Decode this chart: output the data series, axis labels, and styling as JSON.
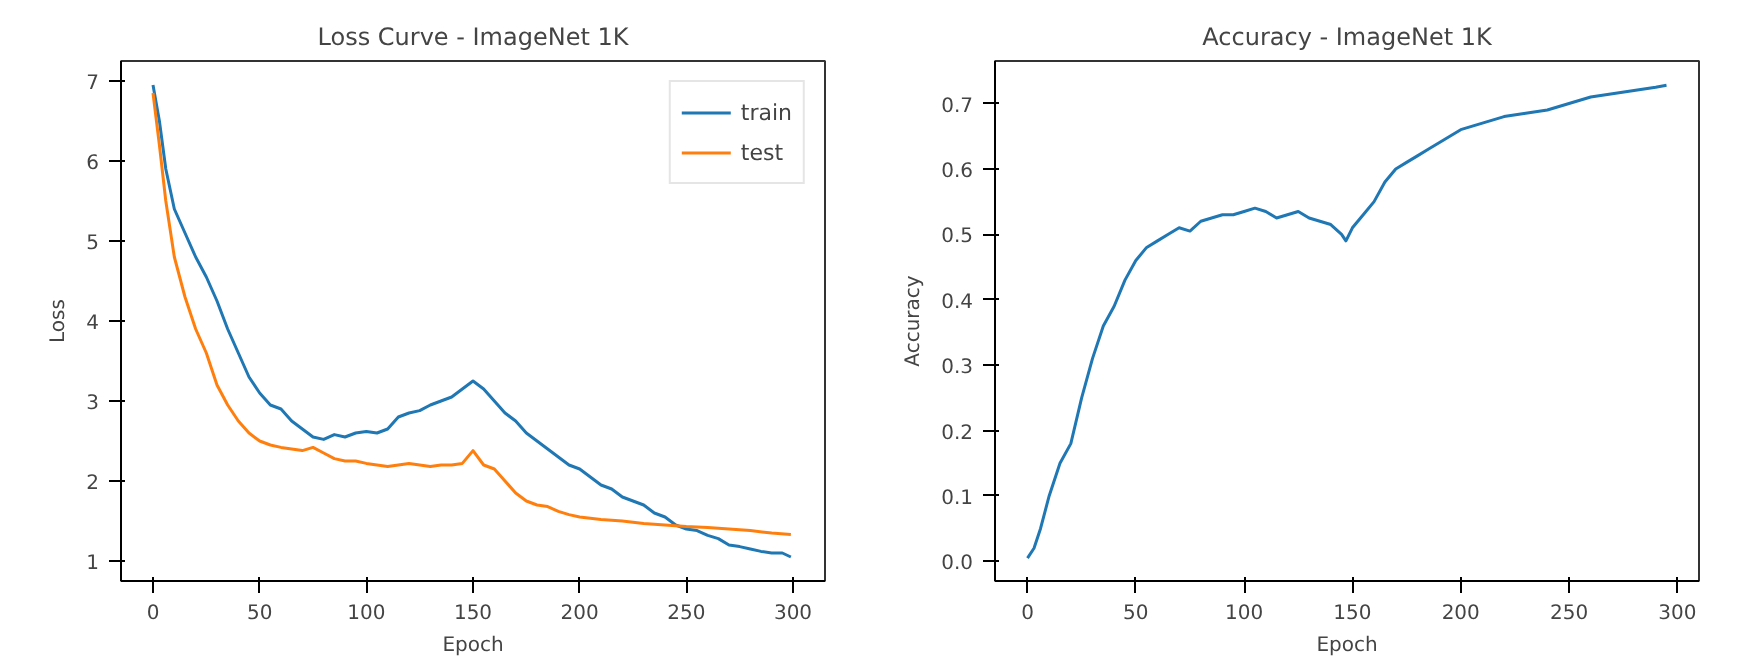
{
  "chart_data": [
    {
      "type": "line",
      "title": "Loss Curve - ImageNet 1K",
      "xlabel": "Epoch",
      "ylabel": "Loss",
      "xlim": [
        -15,
        315
      ],
      "ylim": [
        0.75,
        7.25
      ],
      "xticks": [
        0,
        50,
        100,
        150,
        200,
        250,
        300
      ],
      "yticks": [
        1,
        2,
        3,
        4,
        5,
        6,
        7
      ],
      "grid": false,
      "legend": "top right",
      "series": [
        {
          "name": "train",
          "color": "#1f77b4",
          "x": [
            0,
            3,
            6,
            10,
            15,
            20,
            25,
            30,
            35,
            40,
            45,
            50,
            55,
            60,
            65,
            70,
            75,
            80,
            85,
            90,
            95,
            100,
            105,
            110,
            115,
            120,
            125,
            130,
            135,
            140,
            145,
            150,
            155,
            160,
            165,
            170,
            175,
            180,
            185,
            190,
            195,
            200,
            205,
            210,
            215,
            220,
            225,
            230,
            235,
            240,
            245,
            250,
            255,
            260,
            265,
            270,
            275,
            280,
            285,
            290,
            295,
            299
          ],
          "values": [
            6.95,
            6.5,
            5.9,
            5.4,
            5.1,
            4.8,
            4.55,
            4.25,
            3.9,
            3.6,
            3.3,
            3.1,
            2.95,
            2.9,
            2.75,
            2.65,
            2.55,
            2.52,
            2.58,
            2.55,
            2.6,
            2.62,
            2.6,
            2.65,
            2.8,
            2.85,
            2.88,
            2.95,
            3.0,
            3.05,
            3.15,
            3.25,
            3.15,
            3.0,
            2.85,
            2.75,
            2.6,
            2.5,
            2.4,
            2.3,
            2.2,
            2.15,
            2.05,
            1.95,
            1.9,
            1.8,
            1.75,
            1.7,
            1.6,
            1.55,
            1.45,
            1.4,
            1.38,
            1.32,
            1.28,
            1.2,
            1.18,
            1.15,
            1.12,
            1.1,
            1.1,
            1.05
          ]
        },
        {
          "name": "test",
          "color": "#ff7f0e",
          "x": [
            0,
            3,
            6,
            10,
            15,
            20,
            25,
            30,
            35,
            40,
            45,
            50,
            55,
            60,
            65,
            70,
            75,
            80,
            85,
            90,
            95,
            100,
            105,
            110,
            115,
            120,
            125,
            130,
            135,
            140,
            145,
            150,
            155,
            160,
            165,
            170,
            175,
            180,
            185,
            190,
            195,
            200,
            210,
            220,
            230,
            240,
            250,
            260,
            270,
            280,
            290,
            299
          ],
          "values": [
            6.85,
            6.2,
            5.5,
            4.8,
            4.3,
            3.9,
            3.6,
            3.2,
            2.95,
            2.75,
            2.6,
            2.5,
            2.45,
            2.42,
            2.4,
            2.38,
            2.42,
            2.35,
            2.28,
            2.25,
            2.25,
            2.22,
            2.2,
            2.18,
            2.2,
            2.22,
            2.2,
            2.18,
            2.2,
            2.2,
            2.22,
            2.38,
            2.2,
            2.15,
            2.0,
            1.85,
            1.75,
            1.7,
            1.68,
            1.62,
            1.58,
            1.55,
            1.52,
            1.5,
            1.47,
            1.45,
            1.43,
            1.42,
            1.4,
            1.38,
            1.35,
            1.33
          ]
        }
      ]
    },
    {
      "type": "line",
      "title": "Accuracy - ImageNet 1K",
      "xlabel": "Epoch",
      "ylabel": "Accuracy",
      "xlim": [
        -15,
        310
      ],
      "ylim": [
        -0.03,
        0.765
      ],
      "xticks": [
        0,
        50,
        100,
        150,
        200,
        250,
        300
      ],
      "yticks": [
        {
          "value": 0,
          "label": "0.0"
        },
        0.1,
        0.2,
        0.3,
        0.4,
        0.5,
        0.6,
        0.7
      ],
      "grid": false,
      "series": [
        {
          "color": "#1f77b4",
          "x": [
            0,
            3,
            6,
            10,
            15,
            20,
            25,
            30,
            35,
            40,
            45,
            50,
            55,
            60,
            65,
            70,
            75,
            80,
            85,
            90,
            95,
            100,
            105,
            110,
            115,
            120,
            125,
            130,
            135,
            140,
            145,
            147,
            150,
            155,
            160,
            165,
            170,
            175,
            180,
            185,
            190,
            195,
            200,
            210,
            220,
            230,
            240,
            250,
            260,
            270,
            280,
            290,
            295
          ],
          "values": [
            0.005,
            0.02,
            0.05,
            0.1,
            0.15,
            0.18,
            0.25,
            0.31,
            0.36,
            0.39,
            0.43,
            0.46,
            0.48,
            0.49,
            0.5,
            0.51,
            0.505,
            0.52,
            0.525,
            0.53,
            0.53,
            0.535,
            0.54,
            0.535,
            0.525,
            0.53,
            0.535,
            0.525,
            0.52,
            0.515,
            0.5,
            0.49,
            0.51,
            0.53,
            0.55,
            0.58,
            0.6,
            0.61,
            0.62,
            0.63,
            0.64,
            0.65,
            0.66,
            0.67,
            0.68,
            0.685,
            0.69,
            0.7,
            0.71,
            0.715,
            0.72,
            0.725,
            0.728
          ]
        }
      ]
    }
  ]
}
